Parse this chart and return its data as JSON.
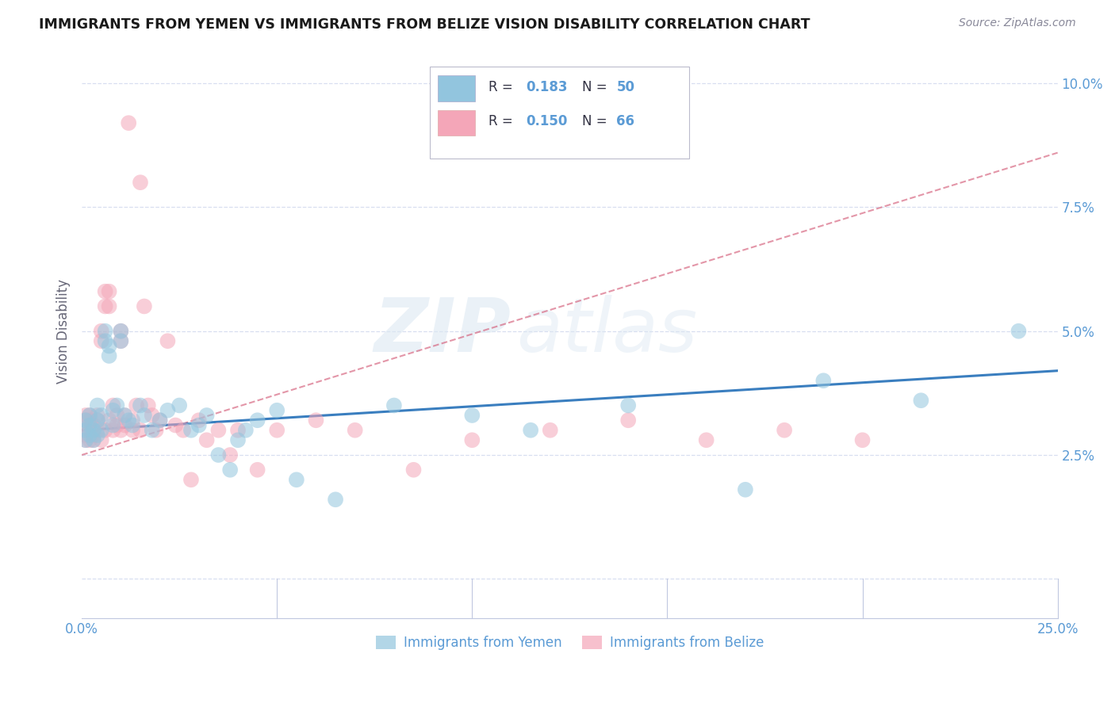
{
  "title": "IMMIGRANTS FROM YEMEN VS IMMIGRANTS FROM BELIZE VISION DISABILITY CORRELATION CHART",
  "source": "Source: ZipAtlas.com",
  "ylabel": "Vision Disability",
  "xlim": [
    0.0,
    0.25
  ],
  "ylim": [
    -0.008,
    0.108
  ],
  "yticks": [
    0.0,
    0.025,
    0.05,
    0.075,
    0.1
  ],
  "ytick_labels": [
    "",
    "2.5%",
    "5.0%",
    "7.5%",
    "10.0%"
  ],
  "xticks": [
    0.0,
    0.05,
    0.1,
    0.15,
    0.2,
    0.25
  ],
  "xtick_labels": [
    "0.0%",
    "",
    "",
    "",
    "",
    "25.0%"
  ],
  "background_color": "#ffffff",
  "watermark_zip": "ZIP",
  "watermark_atlas": "atlas",
  "color_yemen": "#92c5de",
  "color_belize": "#f4a6b8",
  "color_line_yemen": "#3a7ebf",
  "color_line_belize": "#d45e7a",
  "axis_color": "#5b9bd5",
  "grid_color": "#d8dff0",
  "legend_r1": "0.183",
  "legend_n1": "50",
  "legend_r2": "0.150",
  "legend_n2": "66",
  "trendline_yemen_x0": 0.0,
  "trendline_yemen_y0": 0.03,
  "trendline_yemen_x1": 0.25,
  "trendline_yemen_y1": 0.042,
  "trendline_belize_x0": 0.0,
  "trendline_belize_y0": 0.025,
  "trendline_belize_x1": 0.25,
  "trendline_belize_y1": 0.086
}
